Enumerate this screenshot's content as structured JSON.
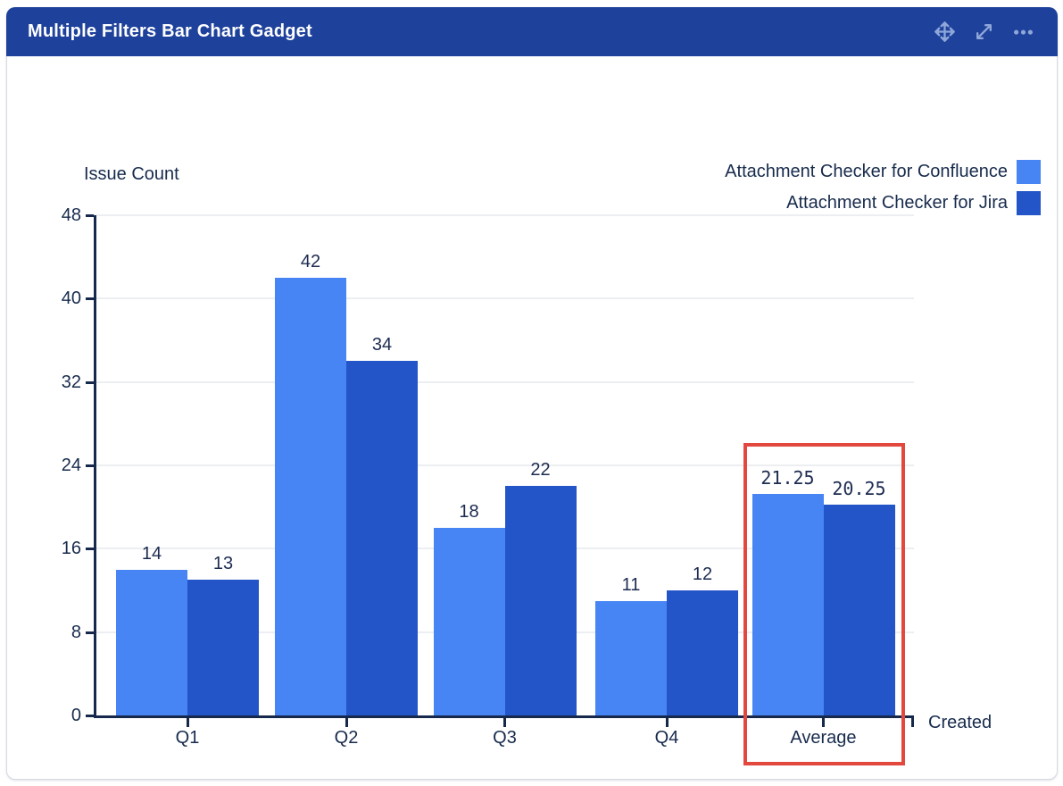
{
  "header": {
    "title": "Multiple Filters Bar Chart Gadget",
    "icons": [
      {
        "name": "move-icon"
      },
      {
        "name": "expand-icon"
      },
      {
        "name": "more-icon"
      }
    ]
  },
  "chart_data": {
    "type": "bar",
    "title": "Multiple Filters Bar Chart Gadget",
    "ylabel": "Issue Count",
    "xlabel": "Created",
    "categories": [
      "Q1",
      "Q2",
      "Q3",
      "Q4",
      "Average"
    ],
    "series": [
      {
        "name": "Attachment Checker for Confluence",
        "color": "#4685f3",
        "values": [
          14,
          42,
          18,
          11,
          21.25
        ]
      },
      {
        "name": "Attachment Checker for Jira",
        "color": "#2355c8",
        "values": [
          13,
          34,
          22,
          12,
          20.25
        ]
      }
    ],
    "ylim": [
      0,
      48
    ],
    "yticks": [
      0,
      8,
      16,
      24,
      32,
      40,
      48
    ],
    "grid": true,
    "legend_position": "top-right",
    "value_labels": true,
    "annotations": [
      {
        "type": "highlight-box",
        "category": "Average",
        "color": "#e2483d"
      }
    ]
  },
  "colors": {
    "header_bg": "#1e419b",
    "header_icon": "#8ea6d8",
    "text": "#172b4d",
    "axis": "#16294c",
    "gridline": "#eceef1",
    "highlight": "#e2483d",
    "card_border": "#d6dae2"
  }
}
